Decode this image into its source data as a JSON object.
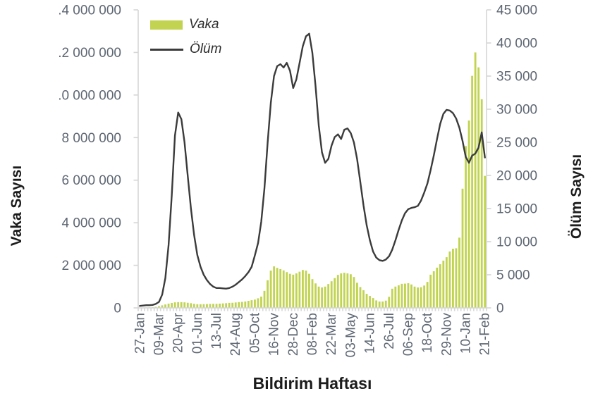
{
  "chart_data": {
    "type": "combo-bar-line",
    "title": "",
    "xlabel": "Bildirim Haftası",
    "ylabel_left": "Vaka Sayısı",
    "ylabel_right": "Ölüm Sayısı",
    "grid": false,
    "legend_position": "top-left-inside",
    "legend": [
      {
        "label": "Vaka",
        "swatch": "bar"
      },
      {
        "label": "Ölüm",
        "swatch": "line"
      }
    ],
    "n_weeks": 109,
    "x_tick_every": 6,
    "x_tick_labels": [
      "27-Jan",
      "09-Mar",
      "20-Apr",
      "01-Jun",
      "13-Jul",
      "24-Aug",
      "05-Oct",
      "16-Nov",
      "28-Dec",
      "08-Feb",
      "22-Mar",
      "03-May",
      "14-Jun",
      "26-Jul",
      "06-Sep",
      "18-Oct",
      "29-Nov",
      "10-Jan",
      "21-Feb"
    ],
    "y_left_axis": {
      "min": 0,
      "max": 14000000,
      "tick_labels_bottom_to_top": [
        "0",
        "2 000 000",
        "4 000 000",
        "6 000 000",
        "8 000 000",
        ".0 000 000",
        ".2 000 000",
        ".4 000 000"
      ]
    },
    "y_right_axis": {
      "min": 0,
      "max": 45000,
      "tick_labels_bottom_to_top": [
        "0",
        "5 000",
        "10 000",
        "15 000",
        "20 000",
        "25 000",
        "30 000",
        "35 000",
        "40 000",
        "45 000"
      ]
    },
    "series": [
      {
        "name": "Vaka",
        "type": "bar",
        "axis": "left",
        "values": [
          10000,
          15000,
          20000,
          25000,
          30000,
          50000,
          80000,
          120000,
          160000,
          200000,
          230000,
          260000,
          270000,
          270000,
          260000,
          240000,
          220000,
          190000,
          170000,
          170000,
          175000,
          180000,
          185000,
          190000,
          190000,
          200000,
          210000,
          220000,
          235000,
          240000,
          255000,
          270000,
          280000,
          300000,
          330000,
          360000,
          390000,
          450000,
          530000,
          800000,
          1300000,
          1750000,
          1950000,
          1880000,
          1820000,
          1760000,
          1680000,
          1600000,
          1560000,
          1620000,
          1700000,
          1780000,
          1750000,
          1600000,
          1350000,
          1150000,
          1000000,
          960000,
          1000000,
          1120000,
          1250000,
          1400000,
          1550000,
          1620000,
          1650000,
          1620000,
          1580000,
          1450000,
          1180000,
          980000,
          830000,
          660000,
          560000,
          460000,
          350000,
          300000,
          300000,
          340000,
          520000,
          900000,
          1000000,
          1060000,
          1130000,
          1140000,
          1160000,
          1100000,
          1000000,
          960000,
          970000,
          1050000,
          1220000,
          1560000,
          1720000,
          1890000,
          2050000,
          2220000,
          2380000,
          2650000,
          2780000,
          2800000,
          3300000,
          5600000,
          7600000,
          8800000,
          10900000,
          12000000,
          11300000,
          9800000,
          6200000
        ]
      },
      {
        "name": "Ölüm",
        "type": "line",
        "axis": "right",
        "values": [
          300,
          350,
          400,
          400,
          450,
          600,
          900,
          2000,
          4500,
          9500,
          17000,
          26000,
          29500,
          28500,
          25000,
          20000,
          15000,
          11000,
          8000,
          6200,
          5000,
          4200,
          3600,
          3200,
          3000,
          3000,
          2950,
          2900,
          3000,
          3200,
          3500,
          3900,
          4300,
          4800,
          5400,
          6200,
          7900,
          9800,
          13000,
          18000,
          25000,
          31000,
          35000,
          36500,
          36800,
          36300,
          37000,
          35800,
          33200,
          34500,
          37000,
          39500,
          41000,
          41400,
          38500,
          33500,
          27500,
          23500,
          21900,
          22500,
          24500,
          25800,
          26200,
          25500,
          26900,
          27100,
          26400,
          25000,
          22500,
          19000,
          15500,
          12500,
          10200,
          8500,
          7600,
          7200,
          7100,
          7300,
          7800,
          8800,
          10200,
          11800,
          13200,
          14300,
          14900,
          15100,
          15200,
          15400,
          16200,
          17400,
          18800,
          20800,
          23000,
          25500,
          27800,
          29300,
          29900,
          29800,
          29400,
          28600,
          27200,
          25200,
          22800,
          21900,
          23000,
          23300,
          24200,
          26500,
          22700
        ]
      }
    ],
    "colors": {
      "bar": "#c1d350",
      "line": "#3b3b3b",
      "axis_line": "#d6d6d6",
      "tick_label": "#5e6773",
      "axis_title": "#1c1c1c",
      "background": "#ffffff"
    }
  }
}
